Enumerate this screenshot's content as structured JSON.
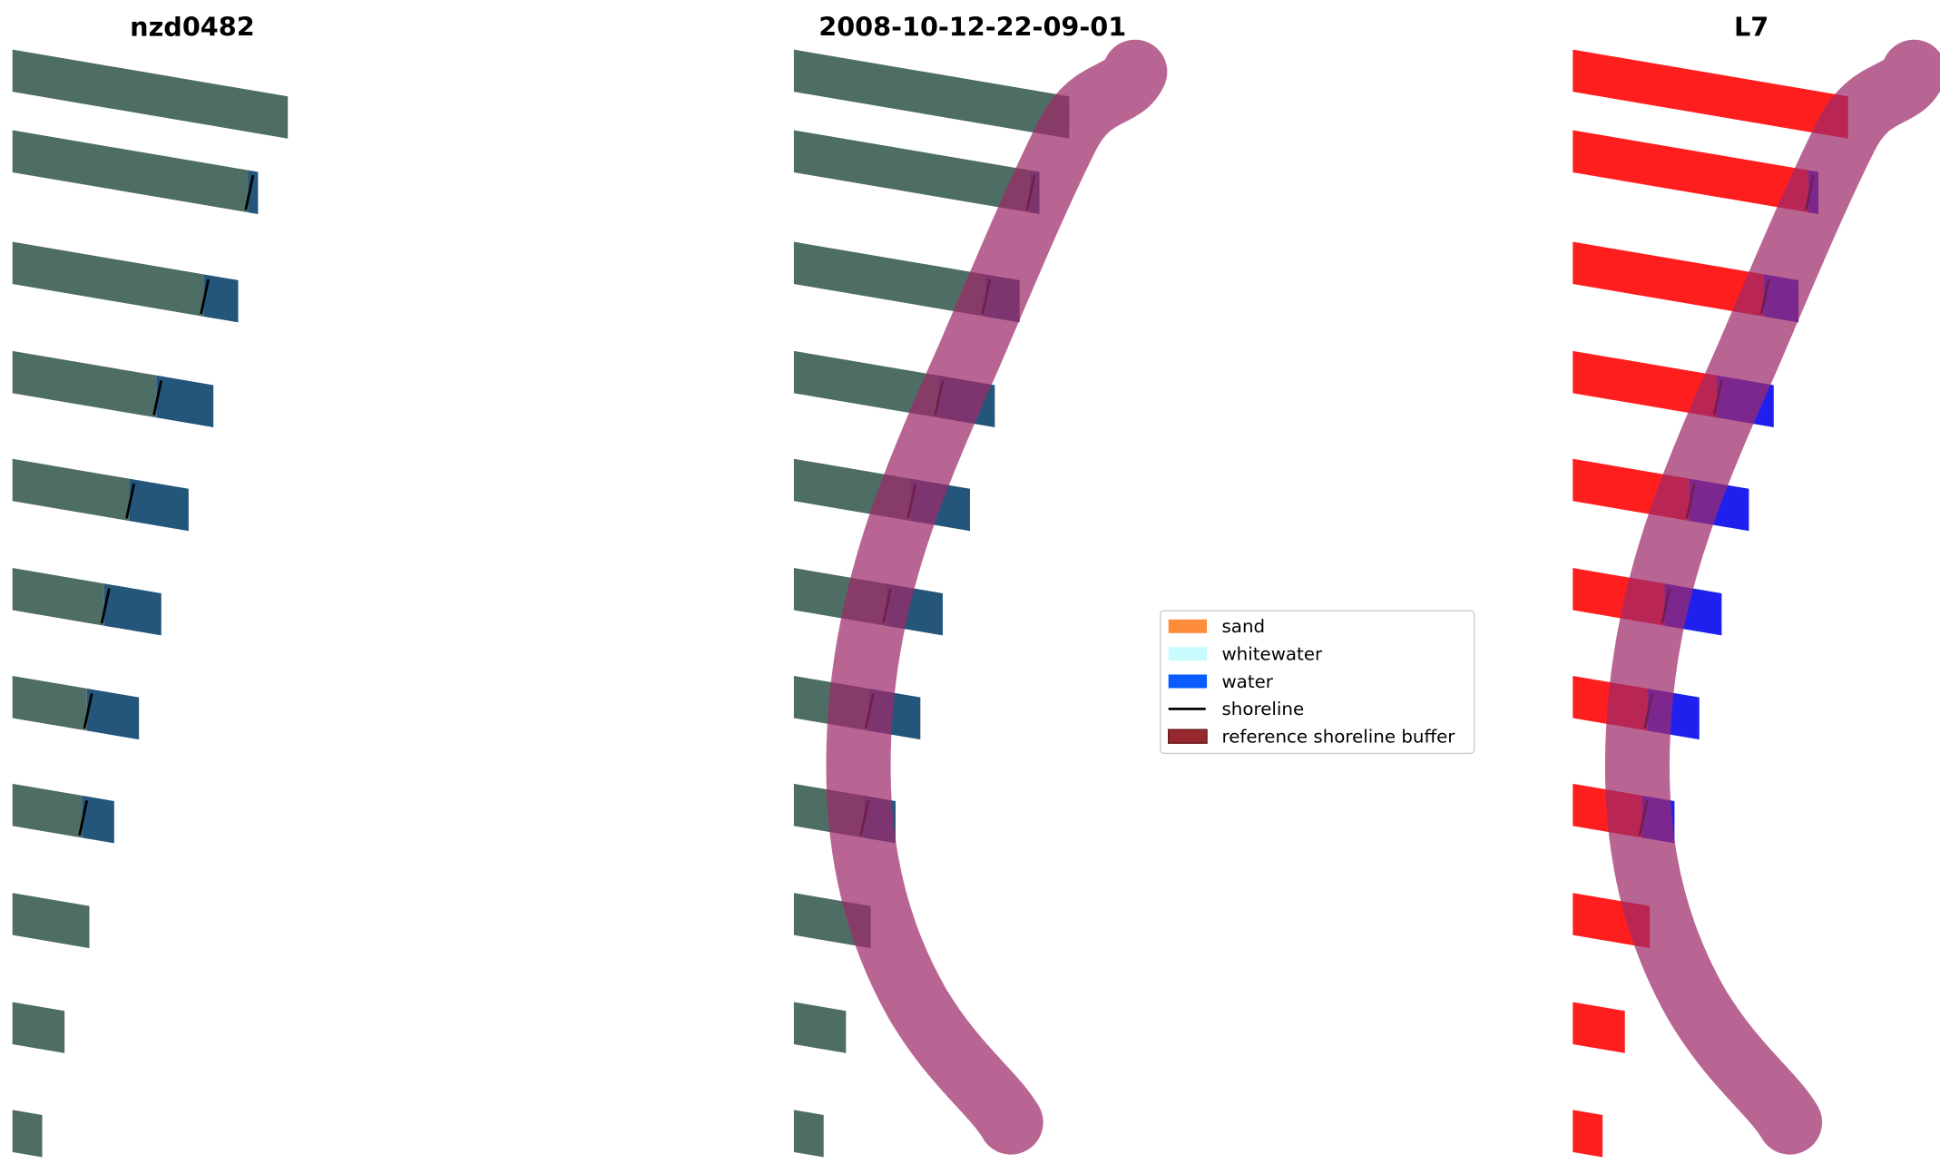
{
  "panels": [
    {
      "title": "nzd0482",
      "style": "rgb"
    },
    {
      "title": "2008-10-12-22-09-01",
      "style": "rgb-buffer"
    },
    {
      "title": "L7",
      "style": "class-buffer"
    }
  ],
  "legend": {
    "items": [
      {
        "label": "sand",
        "color": "#ff8c3a",
        "kind": "patch"
      },
      {
        "label": "whitewater",
        "color": "#c8fbfb",
        "kind": "patch"
      },
      {
        "label": "water",
        "color": "#0a5cff",
        "kind": "patch"
      },
      {
        "label": "shoreline",
        "color": "#000000",
        "kind": "line"
      },
      {
        "label": "reference shoreline buffer",
        "color": "#96282d",
        "kind": "patch"
      }
    ]
  },
  "colors": {
    "land": "#4e6d64",
    "water_rgb": "#24557a",
    "land_class": "#ff1e1e",
    "water_class": "#2020ee",
    "buffer": "#b9628f"
  }
}
